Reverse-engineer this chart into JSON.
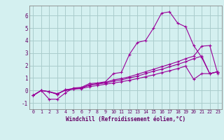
{
  "xlabel": "Windchill (Refroidissement éolien,°C)",
  "background_color": "#d4f0f0",
  "grid_color": "#aacccc",
  "line_color": "#990099",
  "xlim": [
    -0.5,
    23.5
  ],
  "ylim": [
    -1.5,
    6.8
  ],
  "yticks": [
    -1,
    0,
    1,
    2,
    3,
    4,
    5,
    6
  ],
  "xticks": [
    0,
    1,
    2,
    3,
    4,
    5,
    6,
    7,
    8,
    9,
    10,
    11,
    12,
    13,
    14,
    15,
    16,
    17,
    18,
    19,
    20,
    21,
    22,
    23
  ],
  "series1_x": [
    0,
    1,
    2,
    3,
    4,
    5,
    6,
    7,
    8,
    9,
    10,
    11,
    12,
    13,
    14,
    15,
    16,
    17,
    18,
    19,
    20,
    21,
    22,
    23
  ],
  "series1_y": [
    -0.4,
    0.0,
    -0.7,
    -0.7,
    -0.2,
    0.2,
    0.25,
    0.55,
    0.6,
    0.7,
    1.35,
    1.45,
    2.9,
    3.85,
    4.0,
    5.0,
    6.2,
    6.3,
    5.4,
    5.1,
    3.6,
    2.65,
    1.35,
    1.5
  ],
  "series2_x": [
    0,
    1,
    2,
    3,
    4,
    5,
    6,
    7,
    8,
    9,
    10,
    11,
    12,
    13,
    14,
    15,
    16,
    17,
    18,
    19,
    20,
    21,
    22,
    23
  ],
  "series2_y": [
    -0.4,
    0.0,
    -0.1,
    -0.3,
    0.05,
    0.15,
    0.2,
    0.45,
    0.55,
    0.65,
    0.85,
    0.95,
    1.1,
    1.3,
    1.5,
    1.7,
    1.9,
    2.1,
    2.3,
    2.55,
    2.75,
    3.55,
    3.6,
    1.35
  ],
  "series3_x": [
    0,
    1,
    2,
    3,
    4,
    5,
    6,
    7,
    8,
    9,
    10,
    11,
    12,
    13,
    14,
    15,
    16,
    17,
    18,
    19,
    20,
    21,
    22,
    23
  ],
  "series3_y": [
    -0.4,
    0.0,
    -0.1,
    -0.3,
    0.05,
    0.15,
    0.2,
    0.42,
    0.52,
    0.6,
    0.75,
    0.85,
    1.0,
    1.15,
    1.35,
    1.55,
    1.7,
    1.9,
    2.1,
    2.3,
    2.55,
    2.75,
    1.35,
    1.5
  ],
  "series4_x": [
    0,
    1,
    2,
    3,
    4,
    5,
    6,
    7,
    8,
    9,
    10,
    11,
    12,
    13,
    14,
    15,
    16,
    17,
    18,
    19,
    20,
    21,
    22,
    23
  ],
  "series4_y": [
    -0.4,
    0.0,
    -0.1,
    -0.25,
    0.0,
    0.1,
    0.15,
    0.3,
    0.4,
    0.5,
    0.6,
    0.7,
    0.82,
    0.95,
    1.1,
    1.25,
    1.42,
    1.58,
    1.75,
    1.95,
    0.9,
    1.35,
    1.35,
    1.5
  ]
}
